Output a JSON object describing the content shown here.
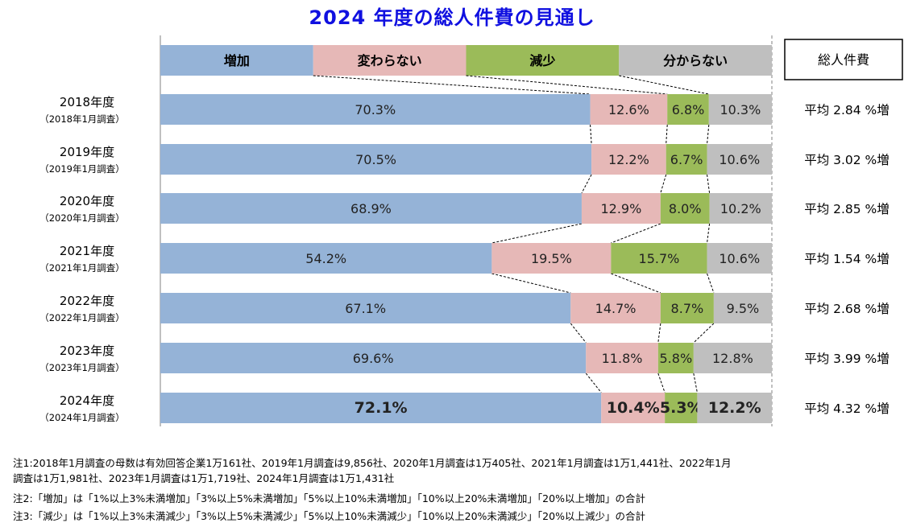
{
  "chart_data": {
    "type": "bar",
    "stacked": true,
    "orientation": "horizontal",
    "title": "2024 年度の総人件費の見通し",
    "xlim": [
      0,
      100
    ],
    "legend_position": "top",
    "categories": [
      "2018年度",
      "2019年度",
      "2020年度",
      "2021年度",
      "2022年度",
      "2023年度",
      "2024年度"
    ],
    "category_sublabels": [
      "（2018年1月調査）",
      "（2019年1月調査）",
      "（2020年1月調査）",
      "（2021年1月調査）",
      "（2022年1月調査）",
      "（2023年1月調査）",
      "（2024年1月調査）"
    ],
    "series": [
      {
        "name": "増加",
        "color": "#95b3d7",
        "values": [
          70.3,
          70.5,
          68.9,
          54.2,
          67.1,
          69.6,
          72.1
        ]
      },
      {
        "name": "変わらない",
        "color": "#e6b8b7",
        "values": [
          12.6,
          12.2,
          12.9,
          19.5,
          14.7,
          11.8,
          10.4
        ]
      },
      {
        "name": "減少",
        "color": "#9bbb59",
        "values": [
          6.8,
          6.7,
          8.0,
          15.7,
          8.7,
          5.8,
          5.3
        ]
      },
      {
        "name": "分からない",
        "color": "#bfbfbf",
        "values": [
          10.3,
          10.6,
          10.2,
          10.6,
          9.5,
          12.8,
          12.2
        ]
      }
    ],
    "data_labels": [
      [
        "70.3%",
        "12.6%",
        "6.8%",
        "10.3%"
      ],
      [
        "70.5%",
        "12.2%",
        "6.7%",
        "10.6%"
      ],
      [
        "68.9%",
        "12.9%",
        "8.0%",
        "10.2%"
      ],
      [
        "54.2%",
        "19.5%",
        "15.7%",
        "10.6%"
      ],
      [
        "67.1%",
        "14.7%",
        "8.7%",
        "9.5%"
      ],
      [
        "69.6%",
        "11.8%",
        "5.8%",
        "12.8%"
      ],
      [
        "72.1%",
        "10.4%",
        "5.3%",
        "12.2%"
      ]
    ],
    "side_header": "総人件費",
    "side_labels": [
      "平均 2.84 %増",
      "平均 3.02 %増",
      "平均 2.85 %増",
      "平均 1.54 %増",
      "平均 2.68 %増",
      "平均 3.99 %増",
      "平均 4.32 %増"
    ]
  },
  "notes": [
    "注1:2018年1月調査の母数は有効回答企業1万161社、2019年1月調査は9,856社、2020年1月調査は1万405社、2021年1月調査は1万1,441社、2022年1月",
    "調査は1万1,981社、2023年1月調査は1万1,719社、2024年1月調査は1万1,431社",
    "注2:「増加」は「1%以上3%未満増加」「3%以上5%未満増加」「5%以上10%未満増加」「10%以上20%未満増加」「20%以上増加」の合計",
    "注3:「減少」は「1%以上3%未満減少」「3%以上5%未満減少」「5%以上10%未満減少」「10%以上20%未満減少」「20%以上減少」の合計"
  ]
}
